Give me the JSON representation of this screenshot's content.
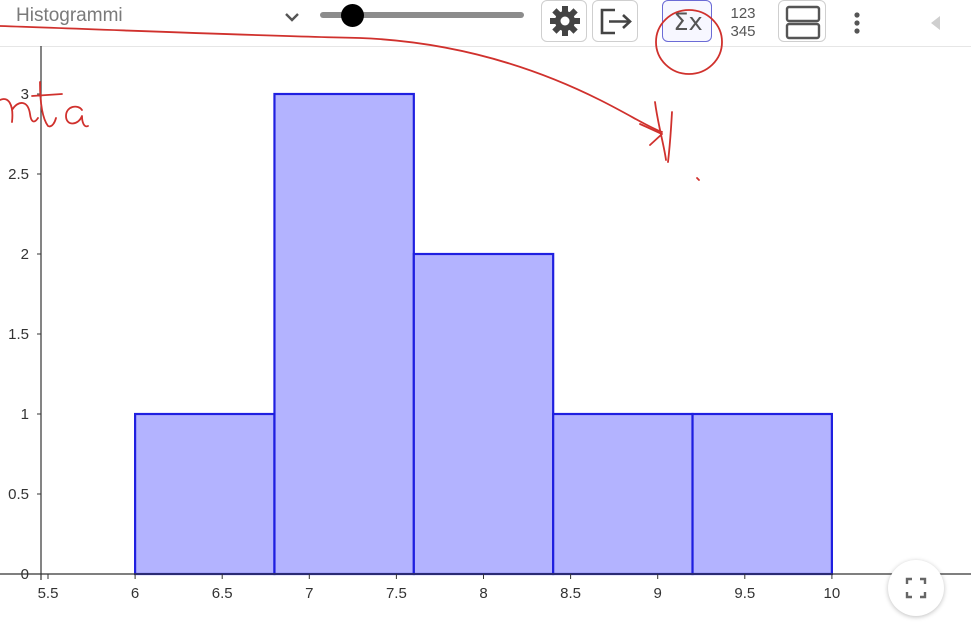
{
  "app": {
    "title": "Histogrammi",
    "icons": {
      "dropdown": "chevron-down-icon",
      "settings": "gear-icon",
      "export": "export-icon",
      "sum": "sigma-x-icon",
      "numbers": "number-grid-icon",
      "layout": "split-view-icon",
      "more": "more-vertical-icon",
      "collapse": "triangle-left-icon",
      "fullscreen": "fullscreen-icon"
    },
    "numbers_icon_top": "123",
    "numbers_icon_bottom": "345",
    "sum_icon_label": "Σx"
  },
  "colors": {
    "bar_fill": "#b3b3ff",
    "bar_stroke": "#1f1fe0",
    "ink": "#d0312d",
    "active_border": "#6b6bd6"
  },
  "chart_data": {
    "type": "bar",
    "title": "",
    "xlabel": "",
    "ylabel": "",
    "bins": [
      {
        "from": 6.0,
        "to": 6.8,
        "value": 1
      },
      {
        "from": 6.8,
        "to": 7.6,
        "value": 3
      },
      {
        "from": 7.6,
        "to": 8.4,
        "value": 2
      },
      {
        "from": 8.4,
        "to": 9.2,
        "value": 1
      },
      {
        "from": 9.2,
        "to": 10.0,
        "value": 1
      }
    ],
    "xlim": [
      5.5,
      10.0
    ],
    "ylim": [
      0,
      3
    ],
    "x_ticks": [
      "5.5",
      "6",
      "6.5",
      "7",
      "7.5",
      "8",
      "8.5",
      "9",
      "9.5",
      "10"
    ],
    "y_ticks": [
      "0",
      "0.5",
      "1",
      "1.5",
      "2",
      "2.5",
      "3"
    ],
    "grid": false,
    "legend": "none"
  }
}
